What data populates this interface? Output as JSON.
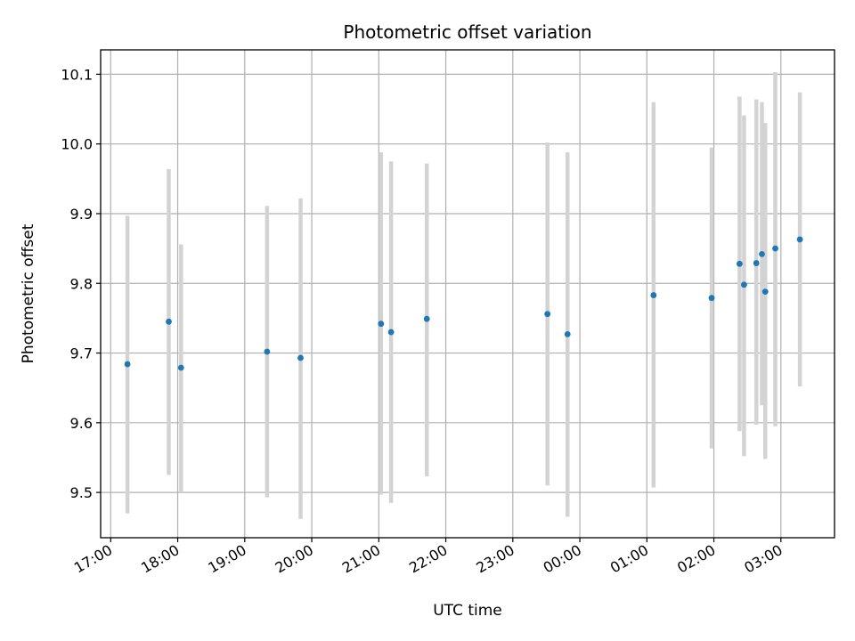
{
  "chart_data": {
    "type": "scatter",
    "title": "Photometric offset variation",
    "xlabel": "UTC time",
    "ylabel": "Photometric offset",
    "xlim": [
      "16:51",
      "03:48"
    ],
    "ylim": [
      9.435,
      10.135
    ],
    "grid": true,
    "legend": "none",
    "x_ticks": [
      "17:00",
      "18:00",
      "19:00",
      "20:00",
      "21:00",
      "22:00",
      "23:00",
      "00:00",
      "01:00",
      "02:00",
      "03:00"
    ],
    "y_ticks": [
      "9.5",
      "9.6",
      "9.7",
      "9.8",
      "9.9",
      "10.0",
      "10.1"
    ],
    "colors": {
      "points": "#1f77b4",
      "error_bars": "#d3d3d3",
      "grid": "#b0b0b0"
    },
    "series": [
      {
        "x": [
          "17:15",
          "17:52",
          "18:03",
          "19:20",
          "19:50",
          "21:02",
          "21:11",
          "21:43",
          "23:31",
          "23:49",
          "01:06",
          "01:58",
          "02:23",
          "02:27",
          "02:38",
          "02:43",
          "02:46",
          "02:55",
          "03:17"
        ],
        "y": [
          9.684,
          9.745,
          9.679,
          9.702,
          9.693,
          9.742,
          9.73,
          9.749,
          9.756,
          9.727,
          9.783,
          9.779,
          9.828,
          9.798,
          9.829,
          9.842,
          9.788,
          9.85,
          9.863
        ],
        "y_err_low": [
          9.47,
          9.525,
          9.5,
          9.493,
          9.462,
          9.497,
          9.485,
          9.523,
          9.51,
          9.465,
          9.507,
          9.563,
          9.588,
          9.552,
          9.597,
          9.625,
          9.548,
          9.595,
          9.652
        ],
        "y_err_high": [
          9.897,
          9.964,
          9.856,
          9.911,
          9.922,
          9.988,
          9.975,
          9.972,
          10.002,
          9.988,
          10.06,
          9.995,
          10.068,
          10.041,
          10.064,
          10.06,
          10.03,
          10.103,
          10.074
        ]
      }
    ]
  }
}
